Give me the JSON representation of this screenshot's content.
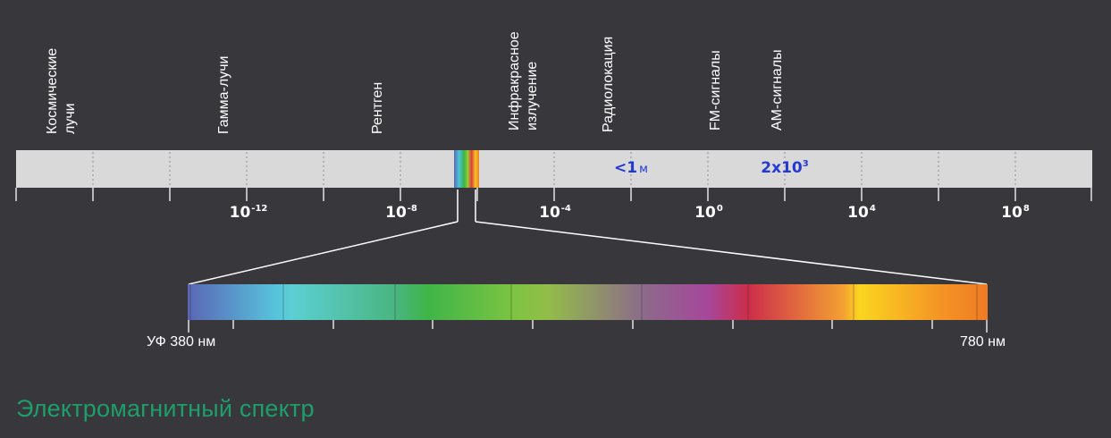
{
  "title": "Электромагнитный спектр",
  "band_labels": [
    {
      "id": "cosmic",
      "text": "Космические\nлучи"
    },
    {
      "id": "gamma",
      "text": "Гамма-лучи"
    },
    {
      "id": "xray",
      "text": "Рентген"
    },
    {
      "id": "infrared",
      "text": "Инфракрасное\nизлучение"
    },
    {
      "id": "radar",
      "text": "Радиолокация"
    },
    {
      "id": "fm",
      "text": "FM-сигналы"
    },
    {
      "id": "am",
      "text": "AM-сигналы"
    }
  ],
  "scale_labels": [
    {
      "id": "m12",
      "base": "10",
      "exp": "-12"
    },
    {
      "id": "m8",
      "base": "10",
      "exp": "-8"
    },
    {
      "id": "m4",
      "base": "10",
      "exp": "-4"
    },
    {
      "id": "zero",
      "base": "10",
      "exp": "0"
    },
    {
      "id": "p4",
      "base": "10",
      "exp": "4"
    },
    {
      "id": "p8",
      "base": "10",
      "exp": "8"
    }
  ],
  "band_marks": [
    {
      "id": "1m",
      "text": "<1",
      "unit": "м"
    },
    {
      "id": "2x103",
      "text": "2x10",
      "exp": "3"
    }
  ],
  "visible_range": {
    "start": "УФ 380 нм",
    "end": "780 нм"
  },
  "colors": {
    "background": "#38373c",
    "bar": "#d9d9d9",
    "title": "#1e9e6a",
    "band_mark": "#2439d4"
  }
}
